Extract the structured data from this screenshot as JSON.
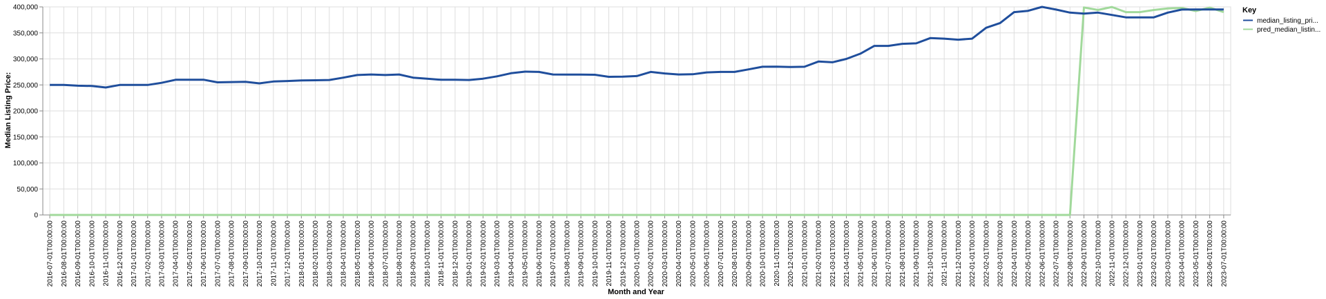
{
  "chart_data": {
    "type": "line",
    "xlabel": "Month and Year",
    "ylabel": "Median Listing Price:",
    "ylim": [
      0,
      400000
    ],
    "yticks": [
      0,
      50000,
      100000,
      150000,
      200000,
      250000,
      300000,
      350000,
      400000
    ],
    "ytick_labels": [
      "0",
      "50,000",
      "100,000",
      "150,000",
      "200,000",
      "250,000",
      "300,000",
      "350,000",
      "400,000"
    ],
    "grid": true,
    "legend": {
      "title": "Key",
      "placement": "top-right"
    },
    "x": [
      "2016-07-01T00:00:00",
      "2016-08-01T00:00:00",
      "2016-09-01T00:00:00",
      "2016-10-01T00:00:00",
      "2016-11-01T00:00:00",
      "2016-12-01T00:00:00",
      "2017-01-01T00:00:00",
      "2017-02-01T00:00:00",
      "2017-03-01T00:00:00",
      "2017-04-01T00:00:00",
      "2017-05-01T00:00:00",
      "2017-06-01T00:00:00",
      "2017-07-01T00:00:00",
      "2017-08-01T00:00:00",
      "2017-09-01T00:00:00",
      "2017-10-01T00:00:00",
      "2017-11-01T00:00:00",
      "2017-12-01T00:00:00",
      "2018-01-01T00:00:00",
      "2018-02-01T00:00:00",
      "2018-03-01T00:00:00",
      "2018-04-01T00:00:00",
      "2018-05-01T00:00:00",
      "2018-06-01T00:00:00",
      "2018-07-01T00:00:00",
      "2018-08-01T00:00:00",
      "2018-09-01T00:00:00",
      "2018-10-01T00:00:00",
      "2018-11-01T00:00:00",
      "2018-12-01T00:00:00",
      "2019-01-01T00:00:00",
      "2019-02-01T00:00:00",
      "2019-03-01T00:00:00",
      "2019-04-01T00:00:00",
      "2019-05-01T00:00:00",
      "2019-06-01T00:00:00",
      "2019-07-01T00:00:00",
      "2019-08-01T00:00:00",
      "2019-09-01T00:00:00",
      "2019-10-01T00:00:00",
      "2019-11-01T00:00:00",
      "2019-12-01T00:00:00",
      "2020-01-01T00:00:00",
      "2020-02-01T00:00:00",
      "2020-03-01T00:00:00",
      "2020-04-01T00:00:00",
      "2020-05-01T00:00:00",
      "2020-06-01T00:00:00",
      "2020-07-01T00:00:00",
      "2020-08-01T00:00:00",
      "2020-09-01T00:00:00",
      "2020-10-01T00:00:00",
      "2020-11-01T00:00:00",
      "2020-12-01T00:00:00",
      "2021-01-01T00:00:00",
      "2021-02-01T00:00:00",
      "2021-03-01T00:00:00",
      "2021-04-01T00:00:00",
      "2021-05-01T00:00:00",
      "2021-06-01T00:00:00",
      "2021-07-01T00:00:00",
      "2021-08-01T00:00:00",
      "2021-09-01T00:00:00",
      "2021-10-01T00:00:00",
      "2021-11-01T00:00:00",
      "2021-12-01T00:00:00",
      "2022-01-01T00:00:00",
      "2022-02-01T00:00:00",
      "2022-03-01T00:00:00",
      "2022-04-01T00:00:00",
      "2022-05-01T00:00:00",
      "2022-06-01T00:00:00",
      "2022-07-01T00:00:00",
      "2022-08-01T00:00:00",
      "2022-09-01T00:00:00",
      "2022-10-01T00:00:00",
      "2022-11-01T00:00:00",
      "2022-12-01T00:00:00",
      "2023-01-01T00:00:00",
      "2023-02-01T00:00:00",
      "2023-03-01T00:00:00",
      "2023-04-01T00:00:00",
      "2023-05-01T00:00:00",
      "2023-06-01T00:00:00",
      "2023-07-01T00:00:00"
    ],
    "series": [
      {
        "name": "median_listing_pri...",
        "color": "#1f4e9c",
        "values": [
          250000,
          250000,
          248500,
          248000,
          245000,
          250000,
          250000,
          250000,
          254000,
          259900,
          260000,
          260000,
          255000,
          255500,
          256000,
          253000,
          256500,
          257500,
          258500,
          259000,
          259500,
          264000,
          269000,
          270000,
          269000,
          270000,
          264000,
          261900,
          259900,
          259900,
          259500,
          262000,
          266500,
          272500,
          275500,
          275000,
          270000,
          269900,
          269900,
          269500,
          265500,
          265900,
          267000,
          275000,
          272000,
          270000,
          270500,
          274000,
          275000,
          275000,
          279900,
          284900,
          285000,
          284500,
          284900,
          295000,
          293500,
          300000,
          310000,
          325000,
          325000,
          329000,
          330000,
          340000,
          339000,
          337000,
          339000,
          359900,
          369000,
          390000,
          392500,
          400000,
          394900,
          389000,
          387000,
          389000,
          384500,
          379900,
          379900,
          379900,
          389000,
          394900,
          395000,
          395000,
          395000
        ]
      },
      {
        "name": "pred_median_listin...",
        "color": "#a1d99b",
        "values": [
          0,
          0,
          0,
          0,
          0,
          0,
          0,
          0,
          0,
          0,
          0,
          0,
          0,
          0,
          0,
          0,
          0,
          0,
          0,
          0,
          0,
          0,
          0,
          0,
          0,
          0,
          0,
          0,
          0,
          0,
          0,
          0,
          0,
          0,
          0,
          0,
          0,
          0,
          0,
          0,
          0,
          0,
          0,
          0,
          0,
          0,
          0,
          0,
          0,
          0,
          0,
          0,
          0,
          0,
          0,
          0,
          0,
          0,
          0,
          0,
          0,
          0,
          0,
          0,
          0,
          0,
          0,
          0,
          0,
          0,
          0,
          0,
          0,
          0,
          399000,
          394000,
          399900,
          390000,
          390000,
          394000,
          397000,
          398000,
          392000,
          398500,
          390000
        ]
      }
    ]
  }
}
